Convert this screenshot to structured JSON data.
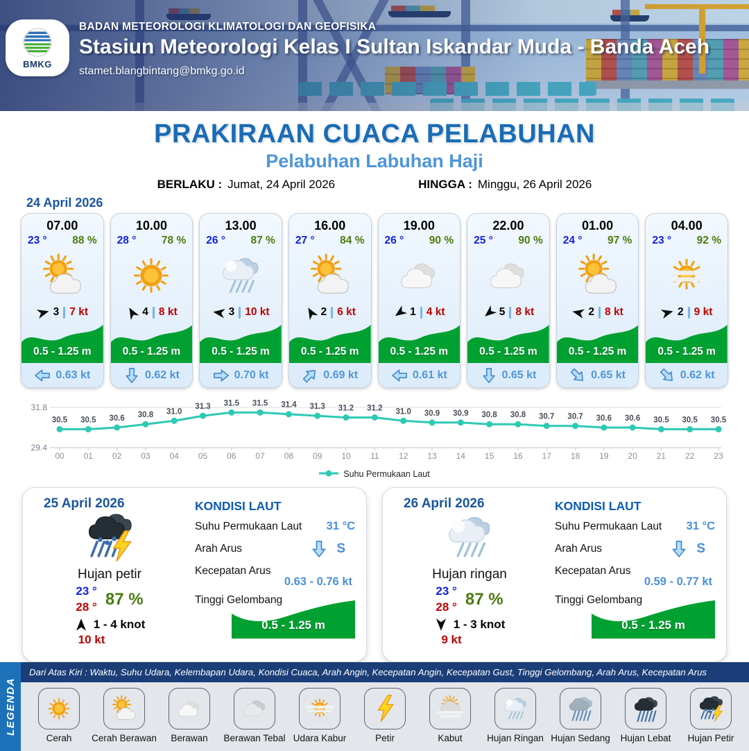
{
  "header": {
    "agency": "BADAN METEOROLOGI KLIMATOLOGI DAN GEOFISIKA",
    "station": "Stasiun Meteorologi Kelas I Sultan Iskandar Muda - Banda Aceh",
    "email": "stamet.blangbintang@bmkg.go.id",
    "logo": "BMKG"
  },
  "title": {
    "main": "PRAKIRAAN CUACA PELABUHAN",
    "subtitle": "Pelabuhan Labuhan Haji",
    "valid_label": "BERLAKU :",
    "valid_value": "Jumat, 24 April 2026",
    "until_label": "HINGGA :",
    "until_value": "Minggu, 26 April 2026"
  },
  "forecast_date": "24 April 2026",
  "forecast_cards": [
    {
      "time": "07.00",
      "temp": "23 °",
      "humidity": "88 %",
      "condition": "Cerah Berawan",
      "icon": "cerah-berawan",
      "wind": {
        "dir_deg": -15,
        "speed": "3",
        "gust": "7 kt"
      },
      "wave": "0.5 - 1.25 m",
      "current": {
        "dir_deg": 180,
        "speed": "0.63 kt"
      }
    },
    {
      "time": "10.00",
      "temp": "28 °",
      "humidity": "78 %",
      "condition": "Cerah",
      "icon": "cerah",
      "wind": {
        "dir_deg": -120,
        "speed": "4",
        "gust": "8 kt"
      },
      "wave": "0.5 - 1.25 m",
      "current": {
        "dir_deg": 90,
        "speed": "0.62 kt"
      }
    },
    {
      "time": "13.00",
      "temp": "26 °",
      "humidity": "87 %",
      "condition": "Hujan Ringan",
      "icon": "hujan-ringan",
      "wind": {
        "dir_deg": -172,
        "speed": "3",
        "gust": "10 kt"
      },
      "wave": "0.5 - 1.25 m",
      "current": {
        "dir_deg": 0,
        "speed": "0.70 kt"
      }
    },
    {
      "time": "16.00",
      "temp": "27 °",
      "humidity": "84 %",
      "condition": "Cerah Berawan",
      "icon": "cerah-berawan",
      "wind": {
        "dir_deg": -120,
        "speed": "2",
        "gust": "6 kt"
      },
      "wave": "0.5 - 1.25 m",
      "current": {
        "dir_deg": -45,
        "speed": "0.69 kt"
      }
    },
    {
      "time": "19.00",
      "temp": "26 °",
      "humidity": "90 %",
      "condition": "Berawan",
      "icon": "berawan",
      "wind": {
        "dir_deg": 145,
        "speed": "1",
        "gust": "4 kt"
      },
      "wave": "0.5 - 1.25 m",
      "current": {
        "dir_deg": 180,
        "speed": "0.61 kt"
      }
    },
    {
      "time": "22.00",
      "temp": "25 °",
      "humidity": "90 %",
      "condition": "Berawan",
      "icon": "berawan",
      "wind": {
        "dir_deg": 140,
        "speed": "5",
        "gust": "8 kt"
      },
      "wave": "0.5 - 1.25 m",
      "current": {
        "dir_deg": 90,
        "speed": "0.65 kt"
      }
    },
    {
      "time": "01.00",
      "temp": "24 °",
      "humidity": "97 %",
      "condition": "Cerah Berawan",
      "icon": "cerah-berawan",
      "wind": {
        "dir_deg": -168,
        "speed": "2",
        "gust": "8 kt"
      },
      "wave": "0.5 - 1.25 m",
      "current": {
        "dir_deg": 45,
        "speed": "0.65 kt"
      }
    },
    {
      "time": "04.00",
      "temp": "23 °",
      "humidity": "92 %",
      "condition": "Udara Kabur",
      "icon": "udara-kabur",
      "wind": {
        "dir_deg": -15,
        "speed": "2",
        "gust": "9 kt"
      },
      "wave": "0.5 - 1.25 m",
      "current": {
        "dir_deg": 45,
        "speed": "0.62 kt"
      }
    }
  ],
  "chart_data": {
    "type": "line",
    "x": [
      "00",
      "01",
      "02",
      "03",
      "04",
      "05",
      "06",
      "07",
      "08",
      "09",
      "10",
      "11",
      "12",
      "13",
      "14",
      "15",
      "16",
      "17",
      "18",
      "19",
      "20",
      "21",
      "22",
      "23"
    ],
    "series": [
      {
        "name": "Suhu Permukaan Laut",
        "color": "#2ec9b4",
        "values": [
          30.5,
          30.5,
          30.6,
          30.8,
          31.0,
          31.3,
          31.5,
          31.5,
          31.4,
          31.3,
          31.2,
          31.2,
          31.0,
          30.9,
          30.9,
          30.8,
          30.8,
          30.7,
          30.7,
          30.6,
          30.6,
          30.5,
          30.5,
          30.5
        ]
      }
    ],
    "ylim": [
      29.4,
      31.8
    ],
    "grid": "min-max horizontal lines only",
    "legend_position": "bottom"
  },
  "daily_panels": [
    {
      "date": "25 April 2026",
      "condition": "Hujan petir",
      "icon": "hujan-petir",
      "temp_min": "23 °",
      "temp_max": "28 °",
      "humidity": "87 %",
      "wind_dir_deg": -90,
      "wind_range": "1 - 4 knot",
      "gust": "10 kt",
      "sea": {
        "heading": "KONDISI LAUT",
        "sst_label": "Suhu Permukaan Laut",
        "sst_value": "31 °C",
        "current_dir_label": "Arah Arus",
        "current_dir_deg": 90,
        "current_dir_value": "S",
        "current_speed_label": "Kecepatan Arus",
        "current_speed_value": "0.63 - 0.76 kt",
        "wave_label": "Tinggi Gelombang",
        "wave_value": "0.5 - 1.25 m"
      }
    },
    {
      "date": "26 April 2026",
      "condition": "Hujan ringan",
      "icon": "hujan-ringan",
      "temp_min": "23 °",
      "temp_max": "28 °",
      "humidity": "87 %",
      "wind_dir_deg": 90,
      "wind_range": "1 - 3 knot",
      "gust": "9 kt",
      "sea": {
        "heading": "KONDISI LAUT",
        "sst_label": "Suhu Permukaan Laut",
        "sst_value": "31 °C",
        "current_dir_label": "Arah Arus",
        "current_dir_deg": 90,
        "current_dir_value": "S",
        "current_speed_label": "Kecepatan Arus",
        "current_speed_value": "0.59 - 0.77 kt",
        "wave_label": "Tinggi Gelombang",
        "wave_value": "0.5 - 1.25 m"
      }
    }
  ],
  "legend": {
    "vertical_label": "LEGENDA",
    "description": "Dari Atas Kiri : Waktu, Suhu Udara, Kelembapan Udara, Kondisi Cuaca, Arah Angin, Kecepatan Angin, Kecepatan Gust, Tinggi Gelombang, Arah Arus, Kecepatan Arus",
    "items": [
      {
        "label": "Cerah",
        "icon": "cerah"
      },
      {
        "label": "Cerah Berawan",
        "icon": "cerah-berawan"
      },
      {
        "label": "Berawan",
        "icon": "berawan"
      },
      {
        "label": "Berawan Tebal",
        "icon": "berawan-tebal"
      },
      {
        "label": "Udara Kabur",
        "icon": "udara-kabur"
      },
      {
        "label": "Petir",
        "icon": "petir"
      },
      {
        "label": "Kabut",
        "icon": "kabut"
      },
      {
        "label": "Hujan Ringan",
        "icon": "hujan-ringan"
      },
      {
        "label": "Hujan Sedang",
        "icon": "hujan-sedang"
      },
      {
        "label": "Hujan Lebat",
        "icon": "hujan-lebat"
      },
      {
        "label": "Hujan Petir",
        "icon": "hujan-petir"
      }
    ]
  },
  "colors": {
    "title_blue": "#1b6cb5",
    "subtitle_blue": "#4d96d9",
    "date_blue": "#1a55a0",
    "temp_blue": "#1122dd",
    "humidity_green": "#4a7c0f",
    "speed_red": "#c00000",
    "wave_green": "#00a131",
    "current_blue": "#4f96d8",
    "chart_teal": "#2ec9b4",
    "legend_stripe_blue": "#1d71b8",
    "legend_header_navy": "#1c3e78"
  }
}
